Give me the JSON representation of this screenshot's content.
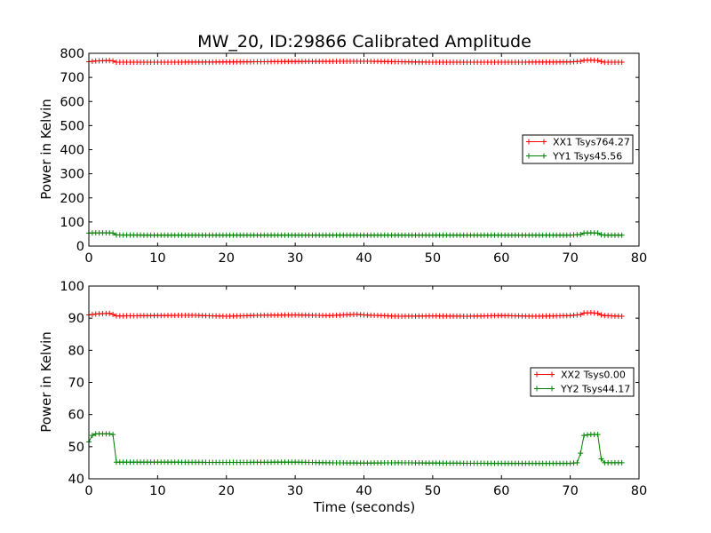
{
  "chart_data": [
    {
      "type": "line",
      "title": "MW_20, ID:29866 Calibrated Amplitude",
      "xlabel": "",
      "ylabel": "Power in Kelvin",
      "xlim": [
        0,
        80
      ],
      "ylim": [
        0,
        800
      ],
      "xticks": [
        "0",
        "10",
        "20",
        "30",
        "40",
        "50",
        "60",
        "70",
        "80"
      ],
      "yticks": [
        "0",
        "100",
        "200",
        "300",
        "400",
        "500",
        "600",
        "700",
        "800"
      ],
      "grid": false,
      "legend": "center-right",
      "series": [
        {
          "name": "XX1 Tsys764.27",
          "color": "#ff0000",
          "points": [
            [
              0,
              765
            ],
            [
              1,
              768
            ],
            [
              2,
              769
            ],
            [
              3,
              770
            ],
            [
              3.5,
              768
            ],
            [
              4,
              763
            ],
            [
              10,
              763
            ],
            [
              20,
              764
            ],
            [
              30,
              766
            ],
            [
              40,
              767
            ],
            [
              50,
              763
            ],
            [
              60,
              763
            ],
            [
              70,
              764
            ],
            [
              71.5,
              767
            ],
            [
              72,
              771
            ],
            [
              73,
              772
            ],
            [
              74,
              770
            ],
            [
              74.5,
              766
            ],
            [
              75,
              763
            ],
            [
              77.5,
              763
            ]
          ]
        },
        {
          "name": "YY1 Tsys45.56",
          "color": "#008000",
          "points": [
            [
              0,
              54
            ],
            [
              1,
              55
            ],
            [
              2,
              55
            ],
            [
              3,
              55
            ],
            [
              3.5,
              54
            ],
            [
              4,
              46
            ],
            [
              10,
              45
            ],
            [
              20,
              45
            ],
            [
              30,
              45
            ],
            [
              40,
              45
            ],
            [
              50,
              45
            ],
            [
              60,
              45
            ],
            [
              70,
              45
            ],
            [
              71.5,
              48
            ],
            [
              72,
              54
            ],
            [
              73,
              55
            ],
            [
              74,
              54
            ],
            [
              74.5,
              47
            ],
            [
              75,
              45
            ],
            [
              77.5,
              45
            ]
          ]
        }
      ]
    },
    {
      "type": "line",
      "title": "",
      "xlabel": "Time (seconds)",
      "ylabel": "Power in Kelvin",
      "xlim": [
        0,
        80
      ],
      "ylim": [
        40,
        100
      ],
      "xticks": [
        "0",
        "10",
        "20",
        "30",
        "40",
        "50",
        "60",
        "70",
        "80"
      ],
      "yticks": [
        "40",
        "50",
        "60",
        "70",
        "80",
        "90",
        "100"
      ],
      "grid": false,
      "legend": "center-right",
      "series": [
        {
          "name": "XX2 Tsys0.00",
          "color": "#ff0000",
          "points": [
            [
              0,
              91.0
            ],
            [
              1,
              91.3
            ],
            [
              2,
              91.4
            ],
            [
              3,
              91.5
            ],
            [
              3.5,
              91.2
            ],
            [
              4,
              90.7
            ],
            [
              10,
              90.8
            ],
            [
              15,
              90.9
            ],
            [
              20,
              90.6
            ],
            [
              25,
              90.9
            ],
            [
              30,
              91.0
            ],
            [
              35,
              90.8
            ],
            [
              39,
              91.2
            ],
            [
              40,
              91.0
            ],
            [
              45,
              90.6
            ],
            [
              50,
              90.7
            ],
            [
              55,
              90.6
            ],
            [
              60,
              90.8
            ],
            [
              65,
              90.6
            ],
            [
              70,
              90.8
            ],
            [
              71.5,
              91.1
            ],
            [
              72,
              91.6
            ],
            [
              73,
              91.7
            ],
            [
              74,
              91.5
            ],
            [
              74.5,
              91.0
            ],
            [
              75,
              90.8
            ],
            [
              77.5,
              90.6
            ]
          ]
        },
        {
          "name": "YY2 Tsys44.17",
          "color": "#008000",
          "points": [
            [
              0,
              51.5
            ],
            [
              0.5,
              53.5
            ],
            [
              1,
              54
            ],
            [
              2,
              54
            ],
            [
              3,
              54
            ],
            [
              3.5,
              53.8
            ],
            [
              3.8,
              47
            ],
            [
              4,
              45.2
            ],
            [
              10,
              45.2
            ],
            [
              20,
              45.1
            ],
            [
              30,
              45.2
            ],
            [
              35,
              45.0
            ],
            [
              40,
              44.9
            ],
            [
              45,
              45.0
            ],
            [
              50,
              44.9
            ],
            [
              60,
              44.8
            ],
            [
              65,
              44.8
            ],
            [
              70,
              44.8
            ],
            [
              71,
              45.0
            ],
            [
              71.5,
              48
            ],
            [
              72,
              53.5
            ],
            [
              73,
              53.8
            ],
            [
              74,
              53.8
            ],
            [
              74.3,
              47
            ],
            [
              74.8,
              45.0
            ],
            [
              77.5,
              45.0
            ]
          ]
        }
      ]
    }
  ]
}
